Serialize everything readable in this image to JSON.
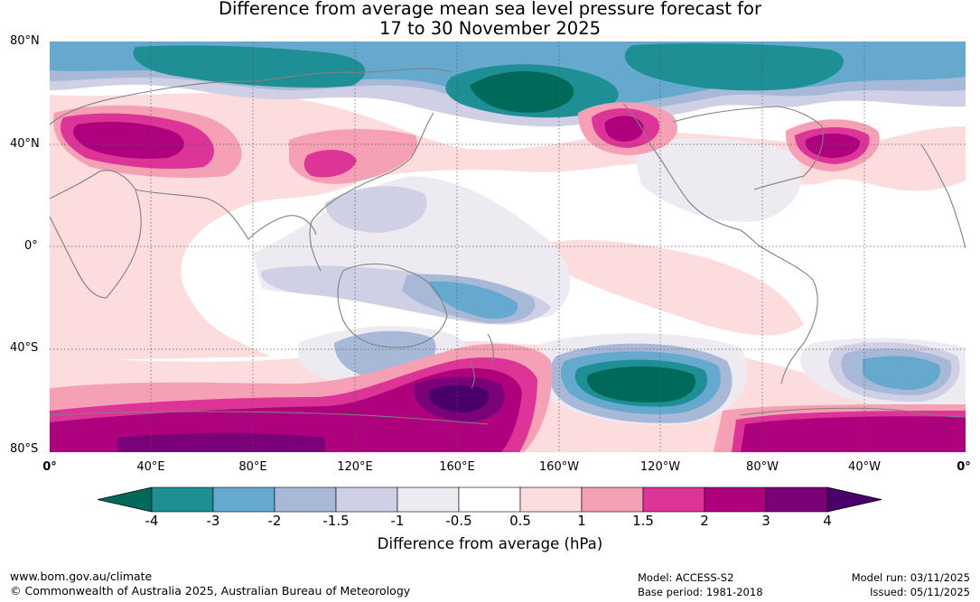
{
  "title": {
    "line1": "Difference from average mean sea level pressure forecast for",
    "line2": "17 to 30 November 2025"
  },
  "map": {
    "lat_labels": [
      "80°N",
      "40°N",
      "0°",
      "40°S",
      "80°S"
    ],
    "lon_labels": [
      "0°",
      "40°E",
      "80°E",
      "120°E",
      "160°E",
      "160°W",
      "120°W",
      "80°W",
      "40°W",
      "0°"
    ],
    "ocean_color": "#ffffff",
    "coast_color": "#808080",
    "grid_color": "#555555"
  },
  "colorbar": {
    "ticks": [
      "-4",
      "-3",
      "-2",
      "-1.5",
      "-1",
      "-0.5",
      "0.5",
      "1",
      "1.5",
      "2",
      "3",
      "4"
    ],
    "colors": [
      "#006a5a",
      "#1f8f96",
      "#66a9cf",
      "#a8b9d8",
      "#cfd0e6",
      "#eeeaf2",
      "#ffffff",
      "#fcdcdc",
      "#f6a0b6",
      "#dd3497",
      "#ae017e",
      "#7a0177",
      "#49006a"
    ],
    "label": "Difference from average (hPa)"
  },
  "footer": {
    "site": "www.bom.gov.au/climate",
    "copyright": "© Commonwealth of Australia 2025, Australian Bureau of Meteorology",
    "model": "Model: ACCESS-S2",
    "base_period": "Base period: 1981-2018",
    "model_run": "Model run: 03/11/2025",
    "issued": "Issued: 05/11/2025"
  }
}
